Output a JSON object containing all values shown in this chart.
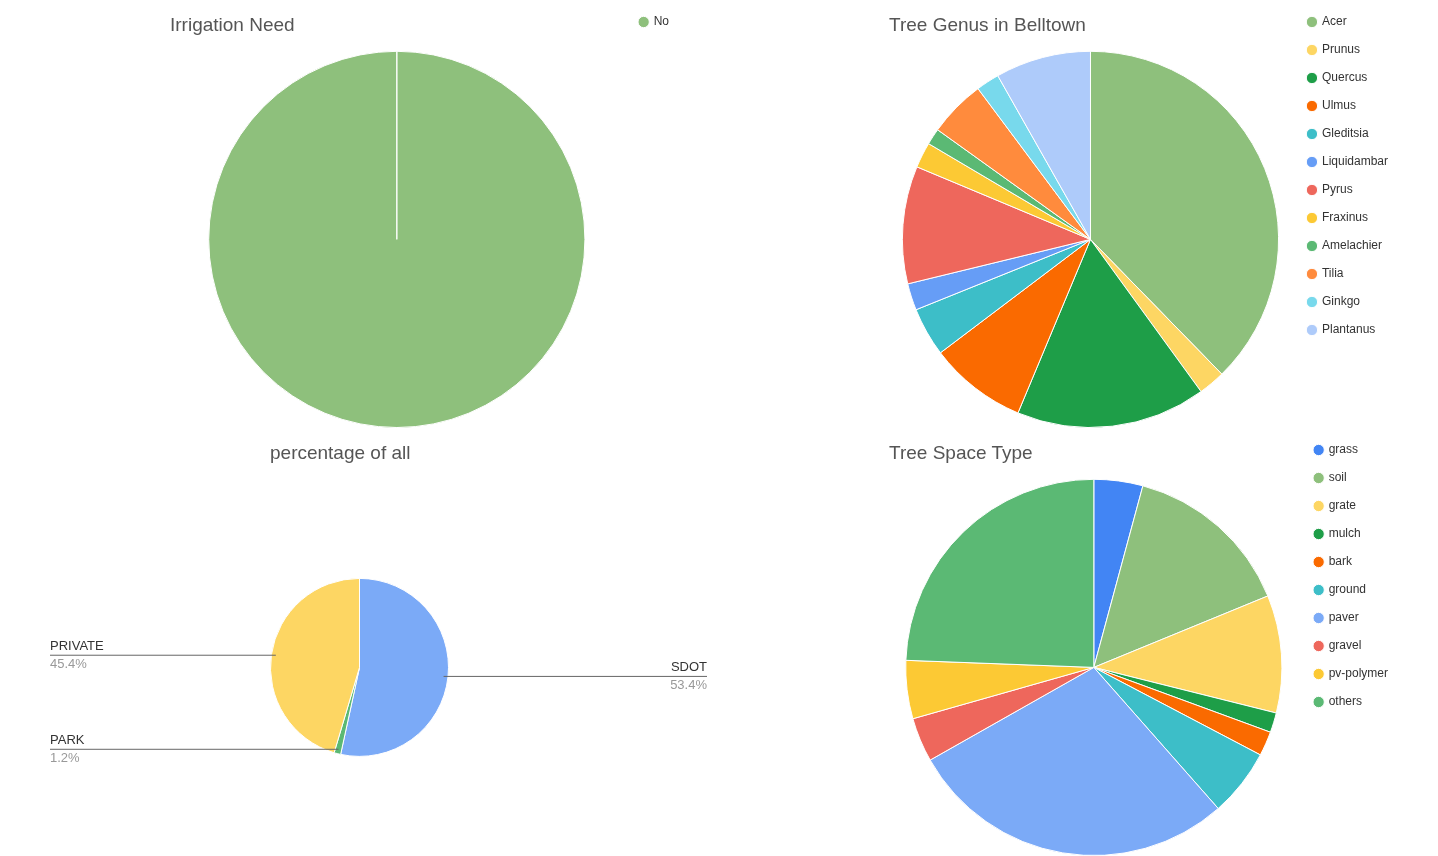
{
  "chart_data": [
    {
      "type": "pie",
      "title": "Irrigation Need",
      "categories": [
        "No"
      ],
      "values": [
        100
      ],
      "colors": [
        "#8ec07c"
      ],
      "legend": "top right"
    },
    {
      "type": "pie",
      "title": "Tree Genus in Belltown",
      "categories": [
        "Acer",
        "Prunus",
        "Quercus",
        "Ulmus",
        "Gleditsia",
        "Liquidambar",
        "Pyrus",
        "Fraxinus",
        "Amelachier",
        "Tilia",
        "Ginkgo",
        "Plantanus"
      ],
      "values": [
        37.7,
        2.3,
        16.3,
        8.4,
        4.2,
        2.3,
        10.1,
        2.2,
        1.4,
        4.9,
        2,
        8.2
      ],
      "colors": [
        "#8ec07c",
        "#fdd663",
        "#1e9e48",
        "#fa6a00",
        "#3dbec8",
        "#669df6",
        "#ee675c",
        "#fcc934",
        "#5bb974",
        "#ff8b3d",
        "#78d9ec",
        "#aecbfa"
      ],
      "legend": "top right"
    },
    {
      "type": "pie",
      "title": "percentage of all",
      "categories": [
        "SDOT",
        "PARK",
        "PRIVATE"
      ],
      "values": [
        53.4,
        1.2,
        45.4
      ],
      "value_labels": [
        "53.4%",
        "1.2%",
        "45.4%"
      ],
      "colors": [
        "#7baaf7",
        "#5bb974",
        "#fdd663"
      ],
      "legend": false
    },
    {
      "type": "pie",
      "title": "Tree Space Type",
      "categories": [
        "grass",
        "soil",
        "grate",
        "mulch",
        "bark",
        "ground",
        "paver",
        "gravel",
        "pv-polymer",
        "others"
      ],
      "values": [
        4.2,
        14.6,
        10.1,
        1.7,
        2.1,
        5.8,
        28.3,
        3.8,
        5,
        24.4
      ],
      "colors": [
        "#4285f4",
        "#8ec07c",
        "#fdd663",
        "#1e9e48",
        "#fa6a00",
        "#3dbec8",
        "#7baaf7",
        "#ee675c",
        "#fcc934",
        "#5bb974"
      ],
      "legend": "top right"
    }
  ]
}
